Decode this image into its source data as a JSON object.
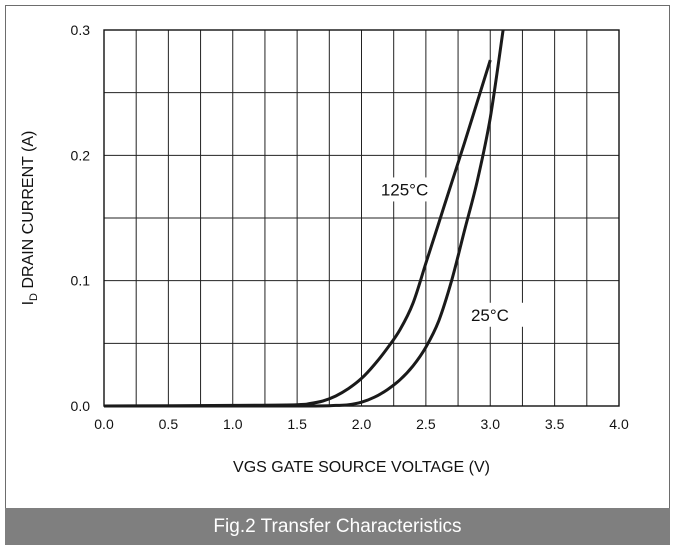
{
  "caption": "Fig.2  Transfer Characteristics",
  "chart_data": {
    "type": "line",
    "title": "",
    "xlabel": "VGS GATE SOURCE VOLTAGE (V)",
    "ylabel_main": "I",
    "ylabel_sub": "D",
    "ylabel_rest": " DRAIN CURRENT (A)",
    "xlim": [
      0,
      4.0
    ],
    "ylim": [
      0,
      0.3
    ],
    "x_ticks": [
      "0.0",
      "0.5",
      "1.0",
      "1.5",
      "2.0",
      "2.5",
      "3.0",
      "3.5",
      "4.0"
    ],
    "y_ticks": [
      "0.0",
      "0.1",
      "0.2",
      "0.3"
    ],
    "grid": true,
    "line_color": "#1a1a1a",
    "series": [
      {
        "name": "125°C",
        "x": [
          0.0,
          1.0,
          1.5,
          1.6,
          1.7,
          1.8,
          1.9,
          2.0,
          2.1,
          2.2,
          2.3,
          2.4,
          2.5,
          2.6,
          2.7,
          2.8,
          2.9,
          3.0
        ],
        "y": [
          0.0,
          0.0005,
          0.001,
          0.002,
          0.004,
          0.008,
          0.014,
          0.022,
          0.033,
          0.046,
          0.061,
          0.082,
          0.114,
          0.146,
          0.178,
          0.21,
          0.243,
          0.276
        ]
      },
      {
        "name": "25°C",
        "x": [
          0.0,
          1.5,
          1.8,
          1.9,
          2.0,
          2.1,
          2.2,
          2.3,
          2.4,
          2.5,
          2.6,
          2.7,
          2.8,
          2.9,
          3.0,
          3.1
        ],
        "y": [
          0.0,
          0.0,
          0.0005,
          0.001,
          0.003,
          0.007,
          0.013,
          0.021,
          0.032,
          0.047,
          0.068,
          0.1,
          0.14,
          0.18,
          0.23,
          0.3
        ]
      }
    ],
    "annotations": [
      {
        "text": "125°C",
        "x": 2.15,
        "y": 0.168
      },
      {
        "text": "25°C",
        "x": 2.85,
        "y": 0.068
      }
    ]
  }
}
